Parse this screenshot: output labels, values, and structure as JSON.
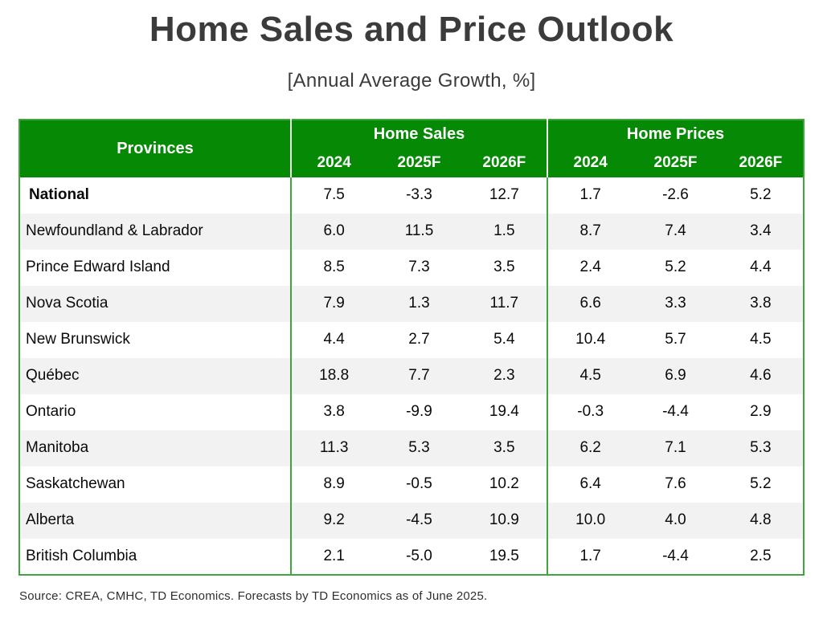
{
  "page": {
    "title": "Home Sales and Price Outlook",
    "subtitle": "[Annual Average Growth, %]",
    "source": "Source: CREA, CMHC, TD Economics. Forecasts by TD Economics as of June 2025."
  },
  "colors": {
    "header_green": "#068a06",
    "border_green": "#3fa63f",
    "stripe_gray": "#f2f2f2",
    "title_gray": "#3b3b3b"
  },
  "chart_data": {
    "type": "table",
    "title": "Home Sales and Price Outlook",
    "subtitle": "[Annual Average Growth, %]",
    "corner_header": "Provinces",
    "column_groups": [
      {
        "label": "Home Sales",
        "years": [
          "2024",
          "2025F",
          "2026F"
        ]
      },
      {
        "label": "Home Prices",
        "years": [
          "2024",
          "2025F",
          "2026F"
        ]
      }
    ],
    "rows": [
      {
        "province": "National",
        "bold": true,
        "values": [
          "7.5",
          "-3.3",
          "12.7",
          "1.7",
          "-2.6",
          "5.2"
        ]
      },
      {
        "province": "Newfoundland & Labrador",
        "bold": false,
        "values": [
          "6.0",
          "11.5",
          "1.5",
          "8.7",
          "7.4",
          "3.4"
        ]
      },
      {
        "province": "Prince Edward Island",
        "bold": false,
        "values": [
          "8.5",
          "7.3",
          "3.5",
          "2.4",
          "5.2",
          "4.4"
        ]
      },
      {
        "province": "Nova Scotia",
        "bold": false,
        "values": [
          "7.9",
          "1.3",
          "11.7",
          "6.6",
          "3.3",
          "3.8"
        ]
      },
      {
        "province": "New Brunswick",
        "bold": false,
        "values": [
          "4.4",
          "2.7",
          "5.4",
          "10.4",
          "5.7",
          "4.5"
        ]
      },
      {
        "province": "Québec",
        "bold": false,
        "values": [
          "18.8",
          "7.7",
          "2.3",
          "4.5",
          "6.9",
          "4.6"
        ]
      },
      {
        "province": "Ontario",
        "bold": false,
        "values": [
          "3.8",
          "-9.9",
          "19.4",
          "-0.3",
          "-4.4",
          "2.9"
        ]
      },
      {
        "province": "Manitoba",
        "bold": false,
        "values": [
          "11.3",
          "5.3",
          "3.5",
          "6.2",
          "7.1",
          "5.3"
        ]
      },
      {
        "province": "Saskatchewan",
        "bold": false,
        "values": [
          "8.9",
          "-0.5",
          "10.2",
          "6.4",
          "7.6",
          "5.2"
        ]
      },
      {
        "province": "Alberta",
        "bold": false,
        "values": [
          "9.2",
          "-4.5",
          "10.9",
          "10.0",
          "4.0",
          "4.8"
        ]
      },
      {
        "province": "British Columbia",
        "bold": false,
        "values": [
          "2.1",
          "-5.0",
          "19.5",
          "1.7",
          "-4.4",
          "2.5"
        ]
      }
    ],
    "source": "Source: CREA, CMHC, TD Economics. Forecasts by TD Economics as of June 2025."
  }
}
